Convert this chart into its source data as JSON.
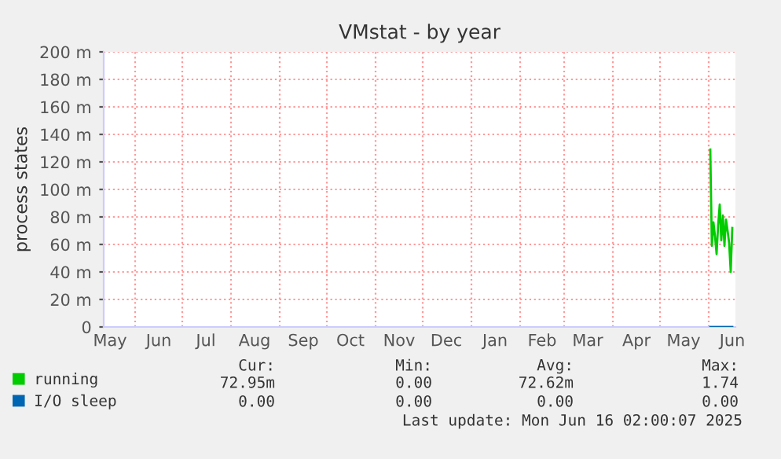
{
  "chart_data": {
    "type": "line",
    "title": "VMstat - by year",
    "ylabel": "process states",
    "x": [
      "2025-06-02",
      "2025-06-03",
      "2025-06-04",
      "2025-06-05",
      "2025-06-06",
      "2025-06-07",
      "2025-06-08",
      "2025-06-09",
      "2025-06-10",
      "2025-06-11",
      "2025-06-12",
      "2025-06-13",
      "2025-06-14",
      "2025-06-15",
      "2025-06-16"
    ],
    "series": [
      {
        "name": "running",
        "color": "#00cc00",
        "values": [
          129,
          59,
          76,
          66,
          53,
          74,
          89,
          63,
          81,
          59,
          78,
          70,
          61,
          40,
          72
        ]
      },
      {
        "name": "I/O sleep",
        "color": "#0066b3",
        "values": [
          0,
          0,
          0,
          0,
          0,
          0,
          0,
          0,
          0,
          0,
          0,
          0,
          0,
          0,
          0
        ]
      }
    ],
    "xlim": [
      "2024-05-12",
      "2025-06-18"
    ],
    "xticks": [
      {
        "value": "2024-05-16",
        "label": "May"
      },
      {
        "value": "2024-06-01",
        "label": null
      },
      {
        "value": "2024-06-16",
        "label": "Jun"
      },
      {
        "value": "2024-07-01",
        "label": null
      },
      {
        "value": "2024-07-16",
        "label": "Jul"
      },
      {
        "value": "2024-08-01",
        "label": null
      },
      {
        "value": "2024-08-16",
        "label": "Aug"
      },
      {
        "value": "2024-09-01",
        "label": null
      },
      {
        "value": "2024-09-16",
        "label": "Sep"
      },
      {
        "value": "2024-10-01",
        "label": null
      },
      {
        "value": "2024-10-16",
        "label": "Oct"
      },
      {
        "value": "2024-11-01",
        "label": null
      },
      {
        "value": "2024-11-16",
        "label": "Nov"
      },
      {
        "value": "2024-12-01",
        "label": null
      },
      {
        "value": "2024-12-16",
        "label": "Dec"
      },
      {
        "value": "2025-01-01",
        "label": null
      },
      {
        "value": "2025-01-16",
        "label": "Jan"
      },
      {
        "value": "2025-02-01",
        "label": null
      },
      {
        "value": "2025-02-15",
        "label": "Feb"
      },
      {
        "value": "2025-03-01",
        "label": null
      },
      {
        "value": "2025-03-16",
        "label": "Mar"
      },
      {
        "value": "2025-04-01",
        "label": null
      },
      {
        "value": "2025-04-16",
        "label": "Apr"
      },
      {
        "value": "2025-05-01",
        "label": null
      },
      {
        "value": "2025-05-16",
        "label": "May"
      },
      {
        "value": "2025-06-01",
        "label": null
      },
      {
        "value": "2025-06-16",
        "label": "Jun"
      }
    ],
    "ylim": [
      0,
      200
    ],
    "yticks": [
      0,
      {
        "value": 20,
        "label": "20 m"
      },
      {
        "value": 40,
        "label": "40 m"
      },
      {
        "value": 60,
        "label": "60 m"
      },
      {
        "value": 80,
        "label": "80 m"
      },
      {
        "value": 100,
        "label": "100 m"
      },
      {
        "value": 120,
        "label": "120 m"
      },
      {
        "value": 140,
        "label": "140 m"
      },
      {
        "value": 160,
        "label": "160 m"
      },
      {
        "value": 180,
        "label": "180 m"
      },
      {
        "value": 200,
        "label": "200 m"
      }
    ],
    "grid": true,
    "legend": "bottom",
    "marker": "none",
    "line_style": "solid",
    "annotations": [
      "Cur:",
      "Min:",
      "Avg:",
      "Max:",
      "72.95m",
      "0.00",
      "72.62m",
      "1.74",
      "0.00",
      "0.00",
      "0.00",
      "0.00",
      "Last update: Mon Jun 16 02:00:07 2025"
    ]
  }
}
